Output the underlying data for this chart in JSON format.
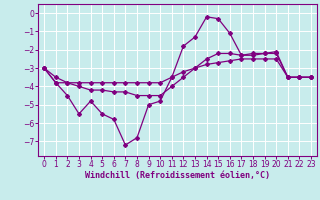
{
  "xlabel": "Windchill (Refroidissement éolien,°C)",
  "background_color": "#c8ecec",
  "grid_color": "#ffffff",
  "line_color": "#800080",
  "xlim": [
    -0.5,
    23.5
  ],
  "ylim": [
    -7.8,
    0.5
  ],
  "xticks": [
    0,
    1,
    2,
    3,
    4,
    5,
    6,
    7,
    8,
    9,
    10,
    11,
    12,
    13,
    14,
    15,
    16,
    17,
    18,
    19,
    20,
    21,
    22,
    23
  ],
  "yticks": [
    0,
    -1,
    -2,
    -3,
    -4,
    -5,
    -6,
    -7
  ],
  "hours": [
    0,
    1,
    2,
    3,
    4,
    5,
    6,
    7,
    8,
    9,
    10,
    11,
    12,
    13,
    14,
    15,
    16,
    17,
    18,
    19,
    20,
    21,
    22,
    23
  ],
  "windchill": [
    -3.0,
    -3.8,
    -4.5,
    -5.5,
    -4.8,
    -5.5,
    -5.8,
    -7.2,
    -6.8,
    -5.0,
    -4.8,
    -3.5,
    -1.8,
    -1.3,
    -0.2,
    -0.3,
    -1.1,
    -2.3,
    -2.3,
    -2.2,
    -2.1,
    -3.5,
    -3.5,
    -3.5
  ],
  "line2": [
    -3.0,
    -3.8,
    -3.8,
    -4.0,
    -4.2,
    -4.2,
    -4.3,
    -4.3,
    -4.5,
    -4.5,
    -4.5,
    -4.0,
    -3.5,
    -3.0,
    -2.5,
    -2.2,
    -2.2,
    -2.3,
    -2.2,
    -2.2,
    -2.2,
    -3.5,
    -3.5,
    -3.5
  ],
  "line3": [
    -3.0,
    -3.5,
    -3.8,
    -3.8,
    -3.8,
    -3.8,
    -3.8,
    -3.8,
    -3.8,
    -3.8,
    -3.8,
    -3.5,
    -3.2,
    -3.0,
    -2.8,
    -2.7,
    -2.6,
    -2.5,
    -2.5,
    -2.5,
    -2.5,
    -3.5,
    -3.5,
    -3.5
  ]
}
